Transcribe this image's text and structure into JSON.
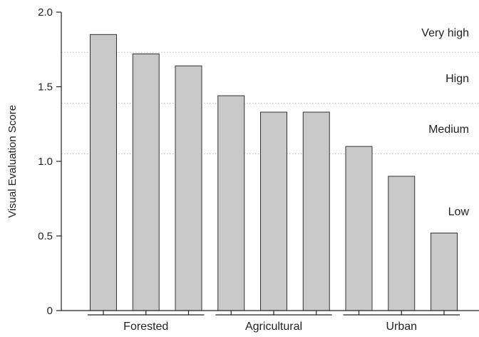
{
  "chart_data": {
    "type": "bar",
    "title": "",
    "xlabel": "",
    "ylabel": "Visual Evaluation Score",
    "ylim": [
      0,
      2.0
    ],
    "yticks": [
      {
        "value": 0,
        "label": "0"
      },
      {
        "value": 0.5,
        "label": "0.5"
      },
      {
        "value": 1.0,
        "label": "1.0"
      },
      {
        "value": 1.5,
        "label": "1.5"
      },
      {
        "value": 2.0,
        "label": "2.0"
      }
    ],
    "values": [
      1.85,
      1.72,
      1.64,
      1.44,
      1.33,
      1.33,
      1.1,
      0.9,
      0.52
    ],
    "groups": [
      {
        "label": "Forested",
        "count": 3
      },
      {
        "label": "Agricultural",
        "count": 3
      },
      {
        "label": "Urban",
        "count": 3
      }
    ],
    "bands": [
      {
        "label": "Very high",
        "lower": 1.73
      },
      {
        "label": "Hign",
        "lower": 1.39
      },
      {
        "label": "Medium",
        "lower": 1.05
      },
      {
        "label": "Low",
        "lower": null
      }
    ],
    "grid": "dotted horizontal band lines",
    "bar_color": "#c8c8c8",
    "bar_stroke": "#333333"
  }
}
